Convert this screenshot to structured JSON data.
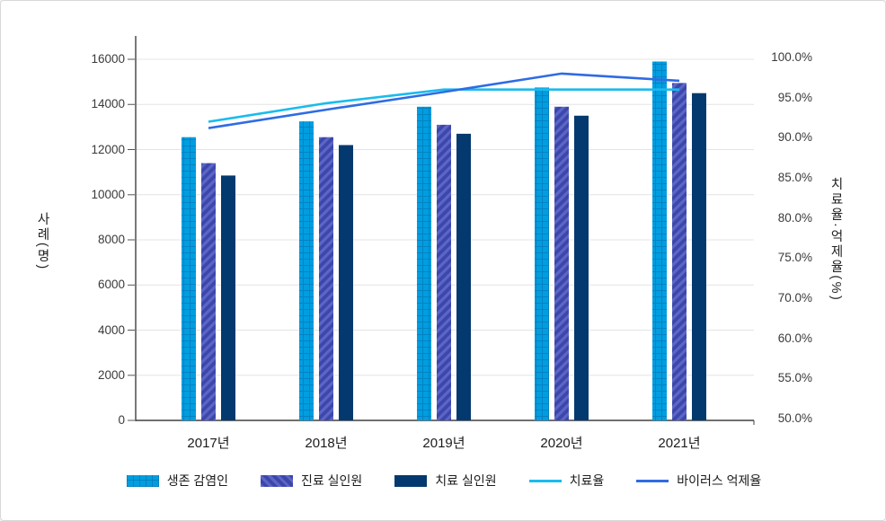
{
  "page": {
    "background": "#ffffff",
    "frame_border": "#d8d8d8"
  },
  "chart_data": {
    "type": "bar+line",
    "title": "",
    "categories": [
      "2017년",
      "2018년",
      "2019년",
      "2020년",
      "2021년"
    ],
    "bar_series": [
      {
        "name": "생존 감염인",
        "values": [
          12550,
          13250,
          13900,
          14750,
          15900
        ],
        "color": "#009EE0",
        "pattern": "grid",
        "pattern_line_color": "rgba(9,96,158,0.45)"
      },
      {
        "name": "진료 실인원",
        "values": [
          11400,
          12550,
          13100,
          13900,
          14950
        ],
        "color": "#3B47AD",
        "pattern": "hatch",
        "stripe_color": "#5D66C3"
      },
      {
        "name": "치료 실인원",
        "values": [
          10850,
          12200,
          12700,
          13500,
          14500
        ],
        "color": "#04396F",
        "pattern": "solid"
      }
    ],
    "line_series": [
      {
        "name": "치료율",
        "values": [
          92.0,
          94.3,
          96.0,
          96.0,
          96.0
        ],
        "color": "#1ABBEE"
      },
      {
        "name": "바이러스 억제율",
        "values": [
          91.2,
          93.5,
          95.7,
          98.0,
          97.1
        ],
        "color": "#2F6BE4"
      }
    ],
    "left_axis": {
      "label": "사례(명)",
      "min": 0,
      "max": 16000,
      "tick_step": 2000,
      "tick_labels": [
        "16000",
        "14000",
        "12000",
        "10000",
        "8000",
        "6000",
        "4000",
        "2000",
        "0"
      ]
    },
    "right_axis": {
      "label": "치료율·억제율(%)",
      "tick_labels": [
        "100.0%",
        "95.0%",
        "90.0%",
        "85.0%",
        "80.0%",
        "75.0%",
        "70.0%",
        "60.0%",
        "55.0%",
        "50.0%"
      ]
    },
    "grid": true,
    "gridline_color": "#e4e4e4",
    "axis_line_color": "#404040",
    "legend_position": "bottom"
  }
}
